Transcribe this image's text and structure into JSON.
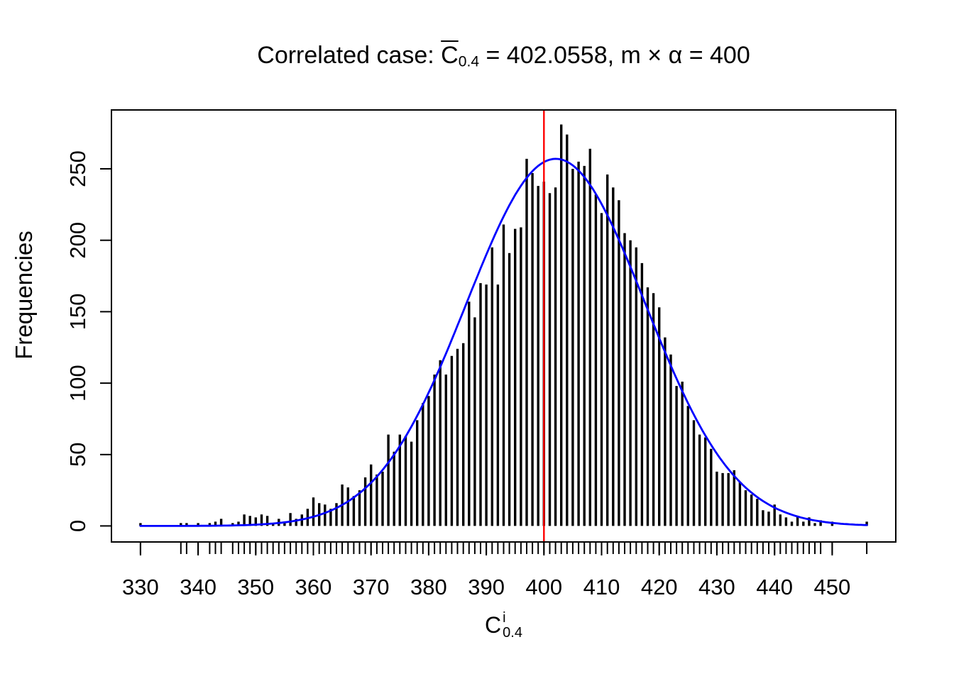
{
  "title": {
    "prefix": "Correlated case: ",
    "c_var": "C",
    "c_sub": "0.4",
    "mid": " = 402.0558,  m ",
    "times": "×",
    "alpha": " α",
    "suffix": " = 400",
    "full_text": "Correlated case: C̄_0.4 = 402.0558, m × α = 400"
  },
  "y_axis": {
    "label": "Frequencies",
    "ticks": [
      0,
      50,
      100,
      150,
      200,
      250
    ]
  },
  "x_axis": {
    "label_base": "C",
    "label_sup": "i",
    "label_sub": "0.4",
    "ticks": [
      330,
      340,
      350,
      360,
      370,
      380,
      390,
      400,
      410,
      420,
      430,
      440,
      450
    ]
  },
  "colors": {
    "foreground": "#000000",
    "background": "#ffffff",
    "bars": "#000000",
    "curve": "#0000ff",
    "vline": "#ff0000"
  },
  "chart_data": {
    "type": "bar",
    "style": "needle-histogram",
    "title": "Correlated case: C̄_0.4 = 402.0558, m × α = 400",
    "xlabel": "C^i_0.4",
    "ylabel": "Frequencies",
    "xlim": [
      324.96,
      461.04
    ],
    "ylim": [
      -11.2,
      291.2
    ],
    "grid": false,
    "legend": null,
    "x_ticks": [
      330,
      340,
      350,
      360,
      370,
      380,
      390,
      400,
      410,
      420,
      430,
      440,
      450
    ],
    "y_ticks": [
      0,
      50,
      100,
      150,
      200,
      250
    ],
    "points": [
      [
        330,
        2
      ],
      [
        337,
        2
      ],
      [
        338,
        2
      ],
      [
        340,
        2
      ],
      [
        342,
        2
      ],
      [
        343,
        3
      ],
      [
        344,
        5
      ],
      [
        346,
        2
      ],
      [
        347,
        3
      ],
      [
        348,
        8
      ],
      [
        349,
        7
      ],
      [
        350,
        6
      ],
      [
        351,
        8
      ],
      [
        352,
        7
      ],
      [
        353,
        2
      ],
      [
        354,
        5
      ],
      [
        355,
        3
      ],
      [
        356,
        9
      ],
      [
        357,
        5
      ],
      [
        358,
        8
      ],
      [
        359,
        12
      ],
      [
        360,
        20
      ],
      [
        361,
        16
      ],
      [
        362,
        15
      ],
      [
        363,
        12
      ],
      [
        364,
        16
      ],
      [
        365,
        29
      ],
      [
        366,
        27
      ],
      [
        367,
        21
      ],
      [
        368,
        25
      ],
      [
        369,
        34
      ],
      [
        370,
        43
      ],
      [
        371,
        36
      ],
      [
        372,
        38
      ],
      [
        373,
        64
      ],
      [
        374,
        52
      ],
      [
        375,
        64
      ],
      [
        376,
        63
      ],
      [
        377,
        59
      ],
      [
        378,
        74
      ],
      [
        379,
        86
      ],
      [
        380,
        91
      ],
      [
        381,
        106
      ],
      [
        382,
        116
      ],
      [
        383,
        106
      ],
      [
        384,
        119
      ],
      [
        385,
        124
      ],
      [
        386,
        128
      ],
      [
        387,
        157
      ],
      [
        388,
        146
      ],
      [
        389,
        170
      ],
      [
        390,
        169
      ],
      [
        391,
        195
      ],
      [
        392,
        169
      ],
      [
        393,
        211
      ],
      [
        394,
        191
      ],
      [
        395,
        208
      ],
      [
        396,
        209
      ],
      [
        397,
        257
      ],
      [
        398,
        247
      ],
      [
        399,
        238
      ],
      [
        400,
        241
      ],
      [
        401,
        233
      ],
      [
        402,
        237
      ],
      [
        403,
        281
      ],
      [
        404,
        274
      ],
      [
        405,
        250
      ],
      [
        406,
        255
      ],
      [
        407,
        252
      ],
      [
        408,
        264
      ],
      [
        409,
        232
      ],
      [
        410,
        219
      ],
      [
        411,
        246
      ],
      [
        412,
        237
      ],
      [
        413,
        228
      ],
      [
        414,
        205
      ],
      [
        415,
        200
      ],
      [
        416,
        195
      ],
      [
        417,
        184
      ],
      [
        418,
        167
      ],
      [
        419,
        163
      ],
      [
        420,
        153
      ],
      [
        421,
        132
      ],
      [
        422,
        120
      ],
      [
        423,
        98
      ],
      [
        424,
        101
      ],
      [
        425,
        84
      ],
      [
        426,
        74
      ],
      [
        427,
        64
      ],
      [
        428,
        62
      ],
      [
        429,
        54
      ],
      [
        430,
        38
      ],
      [
        431,
        37
      ],
      [
        432,
        37
      ],
      [
        433,
        39
      ],
      [
        434,
        31
      ],
      [
        435,
        25
      ],
      [
        436,
        22
      ],
      [
        437,
        19
      ],
      [
        438,
        11
      ],
      [
        439,
        10
      ],
      [
        440,
        15
      ],
      [
        441,
        8
      ],
      [
        442,
        6
      ],
      [
        443,
        3
      ],
      [
        444,
        7
      ],
      [
        445,
        3
      ],
      [
        446,
        6
      ],
      [
        447,
        2
      ],
      [
        448,
        4
      ],
      [
        450,
        3
      ],
      [
        456,
        3
      ]
    ],
    "overlays": {
      "normal_curve": {
        "mean": 402.0558,
        "sd": 15.5,
        "peak": 257,
        "n_total": 10000,
        "x_range": [
          330,
          456
        ],
        "color": "#0000ff"
      },
      "vline": {
        "x": 400,
        "meaning": "m × α = 400",
        "color": "#ff0000"
      }
    }
  }
}
